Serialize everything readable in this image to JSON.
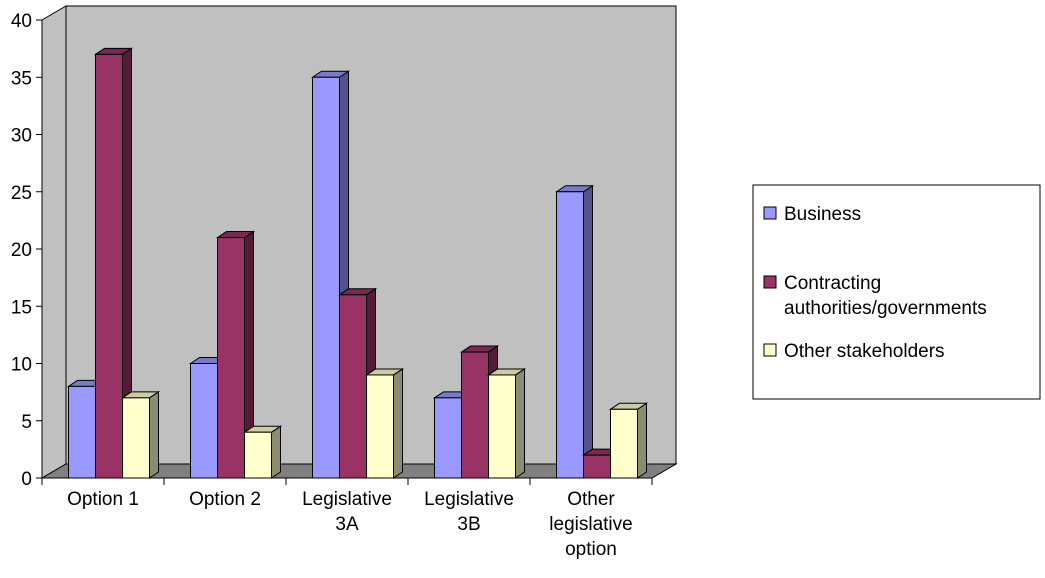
{
  "chart_data": {
    "type": "bar",
    "style": "3d-clustered-column",
    "categories": [
      [
        "Option 1"
      ],
      [
        "Option 2"
      ],
      [
        "Legislative",
        "3A"
      ],
      [
        "Legislative",
        "3B"
      ],
      [
        "Other",
        "legislative",
        "option"
      ]
    ],
    "series": [
      {
        "name": [
          "Business"
        ],
        "color": "#9999ff",
        "values": [
          8,
          10,
          35,
          7,
          25
        ]
      },
      {
        "name": [
          "Contracting",
          "authorities/governments"
        ],
        "color": "#993366",
        "values": [
          37,
          21,
          16,
          11,
          2
        ]
      },
      {
        "name": [
          "Other stakeholders"
        ],
        "color": "#ffffcc",
        "values": [
          7,
          4,
          9,
          9,
          6
        ]
      }
    ],
    "ylim": [
      0,
      40
    ],
    "yticks": [
      0,
      5,
      10,
      15,
      20,
      25,
      30,
      35,
      40
    ],
    "grid": false,
    "legend_position": "right",
    "title": "",
    "xlabel": "",
    "ylabel": ""
  }
}
